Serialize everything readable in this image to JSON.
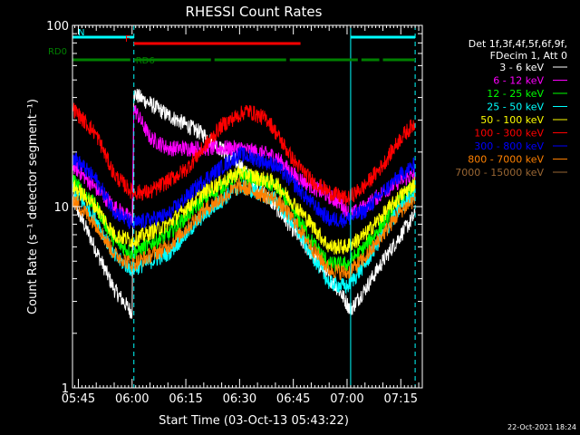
{
  "chart_data": {
    "type": "line",
    "title": "RHESSI Count Rates",
    "xlabel": "Start Time (03-Oct-13 05:43:22)",
    "ylabel": "Count Rate (s⁻¹ detector segment⁻¹)",
    "y_scale": "log",
    "ylim": [
      1,
      100
    ],
    "xlim": [
      "05:43:22",
      "07:21:00"
    ],
    "x_tick_labels": [
      "05:45",
      "06:00",
      "06:15",
      "06:30",
      "06:45",
      "07:00",
      "07:15"
    ],
    "y_tick_labels": [
      "1",
      "10",
      "100"
    ],
    "grid": false,
    "legend_position": "right",
    "legend_header": [
      "Det 1f,3f,4f,5f,6f,9f,",
      "FDecim 1, Att 0"
    ],
    "series": [
      {
        "name": "3 - 6 keV",
        "color": "#ffffff",
        "points": [
          [
            "05:43:22",
            11
          ],
          [
            "05:55:00",
            3.5
          ],
          [
            "06:00:00",
            2.6
          ],
          [
            "06:00:30",
            42
          ],
          [
            "06:10:00",
            32
          ],
          [
            "06:20:00",
            25
          ],
          [
            "06:30:00",
            17
          ],
          [
            "06:40:00",
            10
          ],
          [
            "06:50:00",
            5.5
          ],
          [
            "06:58:00",
            3.4
          ],
          [
            "07:01:00",
            2.7
          ],
          [
            "07:05:00",
            3.5
          ],
          [
            "07:10:00",
            5.0
          ],
          [
            "07:15:00",
            7.0
          ],
          [
            "07:19:00",
            9.0
          ]
        ]
      },
      {
        "name": "6 - 12 keV",
        "color": "#ff00ff",
        "points": [
          [
            "05:43:22",
            17
          ],
          [
            "05:55:00",
            10
          ],
          [
            "06:00:00",
            8.5
          ],
          [
            "06:00:30",
            35
          ],
          [
            "06:05:00",
            24
          ],
          [
            "06:10:00",
            21
          ],
          [
            "06:20:00",
            21
          ],
          [
            "06:30:00",
            21
          ],
          [
            "06:40:00",
            19
          ],
          [
            "06:45:00",
            15
          ],
          [
            "06:50:00",
            13
          ],
          [
            "06:58:00",
            10.5
          ],
          [
            "07:01:00",
            9.0
          ],
          [
            "07:05:00",
            10
          ],
          [
            "07:10:00",
            12
          ],
          [
            "07:15:00",
            14
          ],
          [
            "07:19:00",
            15
          ]
        ]
      },
      {
        "name": "12 - 25 keV",
        "color": "#00ff00",
        "points": [
          [
            "05:43:22",
            14
          ],
          [
            "05:50:00",
            10
          ],
          [
            "05:55:00",
            6.5
          ],
          [
            "06:00:00",
            5.5
          ],
          [
            "06:10:00",
            7
          ],
          [
            "06:20:00",
            11
          ],
          [
            "06:30:00",
            15
          ],
          [
            "06:40:00",
            13
          ],
          [
            "06:45:00",
            9.5
          ],
          [
            "06:50:00",
            6.5
          ],
          [
            "06:55:00",
            4.8
          ],
          [
            "07:00:00",
            4.8
          ],
          [
            "07:05:00",
            6
          ],
          [
            "07:10:00",
            8
          ],
          [
            "07:15:00",
            11
          ],
          [
            "07:19:00",
            13
          ]
        ]
      },
      {
        "name": "25 - 50 keV",
        "color": "#00ffff",
        "points": [
          [
            "05:43:22",
            12.5
          ],
          [
            "05:50:00",
            8.5
          ],
          [
            "05:55:00",
            5.3
          ],
          [
            "06:00:00",
            4.5
          ],
          [
            "06:10:00",
            5.5
          ],
          [
            "06:20:00",
            9
          ],
          [
            "06:30:00",
            13
          ],
          [
            "06:40:00",
            11
          ],
          [
            "06:45:00",
            8
          ],
          [
            "06:50:00",
            5.5
          ],
          [
            "06:55:00",
            3.8
          ],
          [
            "07:00:00",
            3.6
          ],
          [
            "07:05:00",
            4.8
          ],
          [
            "07:10:00",
            7
          ],
          [
            "07:15:00",
            10
          ],
          [
            "07:19:00",
            12
          ]
        ]
      },
      {
        "name": "50 - 100 keV",
        "color": "#ffff00",
        "points": [
          [
            "05:43:22",
            13
          ],
          [
            "05:50:00",
            10
          ],
          [
            "05:55:00",
            7
          ],
          [
            "06:00:00",
            6.5
          ],
          [
            "06:10:00",
            8
          ],
          [
            "06:20:00",
            12
          ],
          [
            "06:30:00",
            15.5
          ],
          [
            "06:40:00",
            13.5
          ],
          [
            "06:45:00",
            10.5
          ],
          [
            "06:50:00",
            8
          ],
          [
            "06:55:00",
            6
          ],
          [
            "07:00:00",
            6
          ],
          [
            "07:05:00",
            7
          ],
          [
            "07:10:00",
            9
          ],
          [
            "07:15:00",
            11.5
          ],
          [
            "07:19:00",
            13.5
          ]
        ]
      },
      {
        "name": "100 - 300 keV",
        "color": "#ff0000",
        "points": [
          [
            "05:43:22",
            35
          ],
          [
            "05:50:00",
            25
          ],
          [
            "05:55:00",
            15
          ],
          [
            "06:00:00",
            12
          ],
          [
            "06:05:00",
            12
          ],
          [
            "06:15:00",
            16
          ],
          [
            "06:25:00",
            28
          ],
          [
            "06:32:00",
            34
          ],
          [
            "06:38:00",
            30
          ],
          [
            "06:45:00",
            18
          ],
          [
            "06:50:00",
            14
          ],
          [
            "06:55:00",
            12
          ],
          [
            "07:00:00",
            11
          ],
          [
            "07:05:00",
            13
          ],
          [
            "07:10:00",
            17
          ],
          [
            "07:15:00",
            24
          ],
          [
            "07:19:00",
            29
          ]
        ]
      },
      {
        "name": "300 - 800 keV",
        "color": "#0000ff",
        "points": [
          [
            "05:43:22",
            19
          ],
          [
            "05:50:00",
            14
          ],
          [
            "05:55:00",
            9.5
          ],
          [
            "06:00:00",
            8
          ],
          [
            "06:10:00",
            9
          ],
          [
            "06:20:00",
            14
          ],
          [
            "06:30:00",
            19.5
          ],
          [
            "06:40:00",
            17
          ],
          [
            "06:45:00",
            13.5
          ],
          [
            "06:50:00",
            10.5
          ],
          [
            "06:55:00",
            8.5
          ],
          [
            "07:00:00",
            8.5
          ],
          [
            "07:05:00",
            9.5
          ],
          [
            "07:10:00",
            12
          ],
          [
            "07:15:00",
            15
          ],
          [
            "07:19:00",
            17
          ]
        ]
      },
      {
        "name": "800 - 7000 keV",
        "color": "#ff8000",
        "points": [
          [
            "05:43:22",
            11
          ],
          [
            "05:50:00",
            8
          ],
          [
            "05:55:00",
            5.5
          ],
          [
            "06:00:00",
            4.8
          ],
          [
            "06:10:00",
            6
          ],
          [
            "06:20:00",
            9.5
          ],
          [
            "06:30:00",
            13
          ],
          [
            "06:40:00",
            11
          ],
          [
            "06:45:00",
            8.5
          ],
          [
            "06:50:00",
            6
          ],
          [
            "06:55:00",
            4.5
          ],
          [
            "07:00:00",
            4.3
          ],
          [
            "07:05:00",
            5.2
          ],
          [
            "07:10:00",
            7
          ],
          [
            "07:15:00",
            9.5
          ],
          [
            "07:19:00",
            11
          ]
        ]
      },
      {
        "name": "7000 - 15000 keV",
        "color": "#996633",
        "points": []
      }
    ],
    "status_bars": [
      {
        "name": "N",
        "color": "#00ffff",
        "segments": [
          [
            "05:43:22",
            "06:00:30"
          ],
          [
            "07:01:00",
            "07:19:00"
          ]
        ]
      },
      {
        "name": "F",
        "color": "#ff0000",
        "segments": [
          [
            "06:00:30",
            "06:47:00"
          ]
        ]
      },
      {
        "name": "RD0",
        "color": "#008000",
        "segments": [
          [
            "05:43:22",
            "05:59:30"
          ]
        ]
      },
      {
        "name": "RD6",
        "color": "#008000",
        "segments": [
          [
            "06:00:30",
            "06:22:00"
          ],
          [
            "06:23:00",
            "06:43:00"
          ],
          [
            "06:44:00",
            "07:03:00"
          ],
          [
            "07:04:00",
            "07:09:00"
          ],
          [
            "07:10:00",
            "07:19:00"
          ]
        ]
      }
    ],
    "vertical_markers": [
      {
        "time": "05:43:22",
        "style": "solid",
        "color": "#00ffff"
      },
      {
        "time": "06:00:30",
        "style": "dashed",
        "color": "#00ffff"
      },
      {
        "time": "07:01:00",
        "style": "solid",
        "color": "#00ffff"
      },
      {
        "time": "07:19:00",
        "style": "dashed",
        "color": "#00ffff"
      }
    ],
    "footer_timestamp": "22-Oct-2021 18:24"
  }
}
